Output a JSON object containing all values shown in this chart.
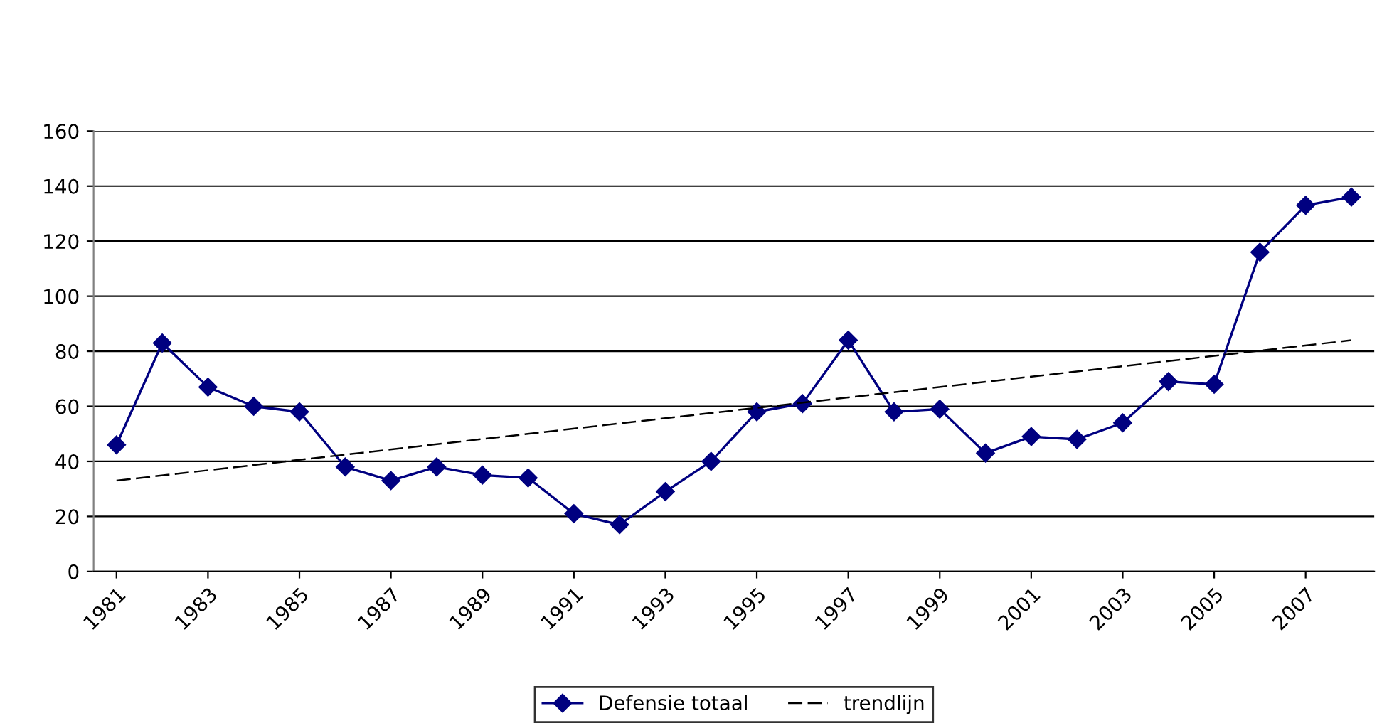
{
  "chart_data": {
    "type": "line",
    "x": [
      1981,
      1982,
      1983,
      1984,
      1985,
      1986,
      1987,
      1988,
      1989,
      1990,
      1991,
      1992,
      1993,
      1994,
      1995,
      1996,
      1997,
      1998,
      1999,
      2000,
      2001,
      2002,
      2003,
      2004,
      2005,
      2006,
      2007,
      2008
    ],
    "series": [
      {
        "name": "Defensie totaal",
        "color": "#000080",
        "marker": "diamond",
        "line_style": "solid",
        "values": [
          46,
          83,
          67,
          60,
          58,
          38,
          33,
          38,
          35,
          34,
          21,
          17,
          29,
          40,
          58,
          61,
          84,
          58,
          59,
          43,
          49,
          48,
          54,
          69,
          68,
          116,
          133,
          136
        ]
      },
      {
        "name": "trendlijn",
        "color": "#000000",
        "marker": "none",
        "line_style": "dashed",
        "x": [
          1981,
          2008
        ],
        "values": [
          33,
          84
        ]
      }
    ],
    "xlim": [
      1980.5,
      2008.5
    ],
    "xticks": [
      1981,
      1983,
      1985,
      1987,
      1989,
      1991,
      1993,
      1995,
      1997,
      1999,
      2001,
      2003,
      2005,
      2007
    ],
    "ylim": [
      0,
      160
    ],
    "yticks": [
      0,
      20,
      40,
      60,
      80,
      100,
      120,
      140,
      160
    ],
    "grid": "y",
    "legend": "bottom"
  }
}
